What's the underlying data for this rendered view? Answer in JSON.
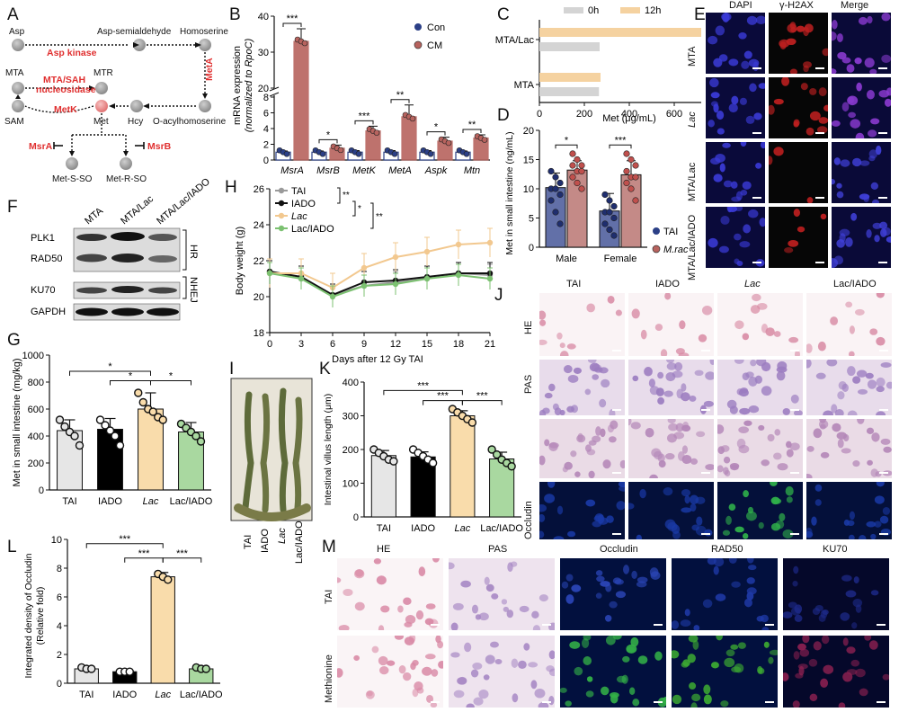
{
  "panels": {
    "A": {
      "letter": "A",
      "nodes": [
        {
          "id": "asp",
          "label": "Asp"
        },
        {
          "id": "aspsa",
          "label": "Asp-semialdehyde"
        },
        {
          "id": "homoser",
          "label": "Homoserine"
        },
        {
          "id": "mta",
          "label": "MTA"
        },
        {
          "id": "mtr",
          "label": "MTR"
        },
        {
          "id": "sam",
          "label": "SAM"
        },
        {
          "id": "met",
          "label": "Met"
        },
        {
          "id": "hcy",
          "label": "Hcy"
        },
        {
          "id": "oacyl",
          "label": "O-acylhomoserine"
        },
        {
          "id": "metsso",
          "label": "Met-S-SO"
        },
        {
          "id": "metrso",
          "label": "Met-R-SO"
        }
      ],
      "enzymes": {
        "aspkinase": "Asp kinase",
        "mtasah": "MTA/SAH\nnucleosidase",
        "mtasah1": "MTA/SAH",
        "mtasah2": "nucleosidase",
        "metA": "MetA",
        "metK": "MetK",
        "msrA": "MsrA",
        "msrB": "MsrB"
      }
    },
    "B": {
      "letter": "B",
      "ylabel1": "mRNA expression",
      "ylabel2": "(normalized to RpoC)",
      "legend": [
        "Con",
        "CM"
      ],
      "sig": [
        "***",
        "*",
        "***",
        "**",
        "*",
        "**"
      ]
    },
    "C": {
      "letter": "C",
      "xlabel": "Met (μg/mL)",
      "legend": [
        "0h",
        "12h"
      ]
    },
    "D": {
      "letter": "D",
      "ylabel": "Met in small intestine (ng/mL)",
      "legend": [
        "TAI",
        "M.rac"
      ],
      "sig": [
        "*",
        "***"
      ]
    },
    "E": {
      "letter": "E",
      "cols": [
        "DAPI",
        "γ-H2AX",
        "Merge"
      ],
      "rows": [
        "MTA",
        "Lac",
        "MTA/Lac",
        "MTA/Lac/IADO"
      ]
    },
    "F": {
      "letter": "F",
      "cols": [
        "MTA",
        "MTA/Lac",
        "MTA/Lac/IADO"
      ],
      "bands": [
        "PLK1",
        "RAD50",
        "KU70",
        "GAPDH"
      ],
      "groups": [
        "HR",
        "NHEJ"
      ]
    },
    "G": {
      "letter": "G",
      "ylabel": "Met in small intestine (mg/kg)",
      "sig": [
        "*",
        "*",
        "*"
      ]
    },
    "H": {
      "letter": "H",
      "ylabel": "Body weight (g)",
      "xlabel": "Days after 12 Gy TAI",
      "legend": [
        "TAI",
        "IADO",
        "Lac",
        "Lac/IADO"
      ],
      "sig": [
        "**",
        "*",
        "**"
      ]
    },
    "I": {
      "letter": "I",
      "labels": [
        "TAI",
        "IADO",
        "Lac",
        "Lac/IADO"
      ]
    },
    "J": {
      "letter": "J",
      "cols": [
        "TAI",
        "IADO",
        "Lac",
        "Lac/IADO"
      ],
      "rows": [
        "HE",
        "PAS",
        "Occludin"
      ]
    },
    "K": {
      "letter": "K",
      "ylabel": "Intestinal villus length (μm)",
      "sig": [
        "***",
        "***",
        "***"
      ]
    },
    "L": {
      "letter": "L",
      "ylabel1": "Integrated density of Occludin",
      "ylabel2": "(Relative fold)",
      "sig": [
        "***",
        "***",
        "***"
      ]
    },
    "M": {
      "letter": "M",
      "cols": [
        "HE",
        "PAS",
        "Occludin",
        "RAD50",
        "KU70"
      ],
      "rows": [
        "TAI",
        "Methionine"
      ]
    }
  },
  "chart_data": [
    {
      "id": "B",
      "type": "bar",
      "categories": [
        "MsrA",
        "MsrB",
        "MetK",
        "MetA",
        "Aspk",
        "Mtn"
      ],
      "series": [
        {
          "name": "Con",
          "values": [
            1.0,
            1.0,
            1.0,
            1.0,
            1.0,
            1.0
          ],
          "errors": [
            0.15,
            0.15,
            0.2,
            0.2,
            0.2,
            0.15
          ]
        },
        {
          "name": "CM",
          "values": [
            33,
            1.5,
            3.7,
            5.5,
            2.4,
            2.8
          ],
          "errors": [
            3.5,
            0.4,
            0.6,
            1.5,
            0.5,
            0.4
          ]
        }
      ],
      "yticks": [
        0,
        2,
        4,
        6,
        8,
        20,
        30,
        40
      ],
      "axis_break": [
        8,
        20
      ],
      "colors": {
        "Con": "#2b3f86",
        "CM": "#b7635e"
      }
    },
    {
      "id": "C",
      "type": "bar",
      "orientation": "horizontal",
      "categories": [
        "MTA/Lac",
        "MTA"
      ],
      "series": [
        {
          "name": "0h",
          "values": [
            268,
            265
          ]
        },
        {
          "name": "12h",
          "values": [
            720,
            272
          ]
        }
      ],
      "xlim": [
        0,
        800
      ],
      "xticks": [
        0,
        200,
        400,
        600,
        800
      ],
      "colors": {
        "0h": "#d4d4d4",
        "12h": "#f5d2a0"
      }
    },
    {
      "id": "D",
      "type": "bar",
      "categories": [
        "Male",
        "Female"
      ],
      "series": [
        {
          "name": "TAI",
          "values": [
            10.2,
            6.2
          ],
          "errors": [
            2.5,
            3.0
          ]
        },
        {
          "name": "M.rac",
          "values": [
            13.2,
            12.4
          ],
          "errors": [
            1.6,
            2.4
          ]
        }
      ],
      "ylim": [
        0,
        20
      ],
      "yticks": [
        0,
        5,
        10,
        15,
        20
      ],
      "colors": {
        "TAI": "#6270a8",
        "M.rac": "#c48a87"
      }
    },
    {
      "id": "G",
      "type": "bar",
      "categories": [
        "TAI",
        "IADO",
        "Lac",
        "Lac/IADO"
      ],
      "values": [
        440,
        450,
        600,
        430
      ],
      "errors": [
        80,
        80,
        120,
        70
      ],
      "points": [
        [
          520,
          470,
          430,
          400,
          330
        ],
        [
          520,
          480,
          440,
          400,
          330
        ],
        [
          720,
          650,
          600,
          580,
          540,
          520
        ],
        [
          490,
          460,
          430,
          400,
          360
        ]
      ],
      "ylim": [
        0,
        1000
      ],
      "yticks": [
        0,
        200,
        400,
        600,
        800,
        1000
      ],
      "colors": [
        "#e6e6e6",
        "#000000",
        "#f9dcab",
        "#a9d8a0"
      ]
    },
    {
      "id": "H",
      "type": "line",
      "x": [
        0,
        3,
        6,
        9,
        12,
        15,
        18,
        21
      ],
      "series": [
        {
          "name": "TAI",
          "values": [
            21.4,
            21.0,
            20.1,
            20.6,
            20.8,
            21.0,
            21.3,
            21.2
          ]
        },
        {
          "name": "IADO",
          "values": [
            21.4,
            21.1,
            20.1,
            20.8,
            20.9,
            21.1,
            21.3,
            21.3
          ]
        },
        {
          "name": "Lac",
          "values": [
            21.3,
            21.3,
            20.5,
            21.6,
            22.2,
            22.5,
            22.9,
            23.0
          ]
        },
        {
          "name": "Lac/IADO",
          "values": [
            21.3,
            21.0,
            20.0,
            20.6,
            20.7,
            21.0,
            21.2,
            21.0
          ]
        }
      ],
      "ylim": [
        18,
        26
      ],
      "yticks": [
        18,
        20,
        22,
        24,
        26
      ],
      "xticks": [
        0,
        3,
        6,
        9,
        12,
        15,
        18,
        21
      ],
      "colors": {
        "TAI": "#9a9a9a",
        "IADO": "#111111",
        "Lac": "#f2c88f",
        "Lac/IADO": "#7cc171"
      }
    },
    {
      "id": "K",
      "type": "bar",
      "categories": [
        "TAI",
        "IADO",
        "Lac",
        "Lac/IADO"
      ],
      "values": [
        182,
        178,
        300,
        172
      ],
      "errors": [
        15,
        15,
        15,
        20
      ],
      "points": [
        [
          200,
          190,
          180,
          170,
          165
        ],
        [
          200,
          190,
          180,
          170,
          160
        ],
        [
          320,
          310,
          300,
          290,
          280
        ],
        [
          200,
          185,
          170,
          160,
          150
        ]
      ],
      "ylim": [
        0,
        400
      ],
      "yticks": [
        0,
        100,
        200,
        300,
        400
      ],
      "colors": [
        "#e6e6e6",
        "#000000",
        "#f9dcab",
        "#a9d8a0"
      ]
    },
    {
      "id": "L",
      "type": "bar",
      "categories": [
        "TAI",
        "IADO",
        "Lac",
        "Lac/IADO"
      ],
      "values": [
        1.0,
        0.8,
        7.4,
        1.0
      ],
      "errors": [
        0.1,
        0.1,
        0.3,
        0.1
      ],
      "points": [
        [
          1.1,
          1.0,
          1.0
        ],
        [
          0.8,
          0.8,
          0.8
        ],
        [
          7.6,
          7.4,
          7.2
        ],
        [
          1.1,
          1.0,
          1.0
        ]
      ],
      "ylim": [
        0,
        10
      ],
      "yticks": [
        0,
        2,
        4,
        6,
        8,
        10
      ],
      "colors": [
        "#e6e6e6",
        "#000000",
        "#f9dcab",
        "#a9d8a0"
      ]
    }
  ]
}
